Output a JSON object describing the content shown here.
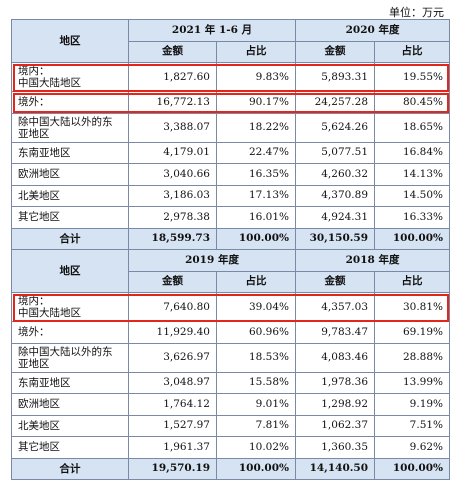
{
  "unit": "单位：万元",
  "table1": {
    "region_header": "地区",
    "periods": [
      "2021 年 1-6 月",
      "2020 年度"
    ],
    "sub_headers": [
      "金额",
      "占比",
      "金额",
      "占比"
    ],
    "rows": [
      {
        "region": "境内：\n中国大陆地区",
        "a1": "1,827.60",
        "p1": "9.83%",
        "a2": "5,893.31",
        "p2": "19.55%"
      },
      {
        "region": "境外：",
        "a1": "16,772.13",
        "p1": "90.17%",
        "a2": "24,257.28",
        "p2": "80.45%"
      },
      {
        "region": "除中国大陆以外的东亚地区",
        "a1": "3,388.07",
        "p1": "18.22%",
        "a2": "5,624.26",
        "p2": "18.65%"
      },
      {
        "region": "东南亚地区",
        "a1": "4,179.01",
        "p1": "22.47%",
        "a2": "5,077.51",
        "p2": "16.84%"
      },
      {
        "region": "欧洲地区",
        "a1": "3,040.66",
        "p1": "16.35%",
        "a2": "4,260.32",
        "p2": "14.13%"
      },
      {
        "region": "北美地区",
        "a1": "3,186.03",
        "p1": "17.13%",
        "a2": "4,370.89",
        "p2": "14.50%"
      },
      {
        "region": "其它地区",
        "a1": "2,978.38",
        "p1": "16.01%",
        "a2": "4,924.31",
        "p2": "16.33%"
      }
    ],
    "total": {
      "region": "合计",
      "a1": "18,599.73",
      "p1": "100.00%",
      "a2": "30,150.59",
      "p2": "100.00%"
    }
  },
  "table2": {
    "region_header": "地区",
    "periods": [
      "2019 年度",
      "2018 年度"
    ],
    "sub_headers": [
      "金额",
      "占比",
      "金额",
      "占比"
    ],
    "rows": [
      {
        "region": "境内：\n中国大陆地区",
        "a1": "7,640.80",
        "p1": "39.04%",
        "a2": "4,357.03",
        "p2": "30.81%"
      },
      {
        "region": "境外：",
        "a1": "11,929.40",
        "p1": "60.96%",
        "a2": "9,783.47",
        "p2": "69.19%"
      },
      {
        "region": "除中国大陆以外的东亚地区",
        "a1": "3,626.97",
        "p1": "18.53%",
        "a2": "4,083.46",
        "p2": "28.88%"
      },
      {
        "region": "东南亚地区",
        "a1": "3,048.97",
        "p1": "15.58%",
        "a2": "1,978.36",
        "p2": "13.99%"
      },
      {
        "region": "欧洲地区",
        "a1": "1,764.12",
        "p1": "9.01%",
        "a2": "1,298.92",
        "p2": "9.19%"
      },
      {
        "region": "北美地区",
        "a1": "1,527.97",
        "p1": "7.81%",
        "a2": "1,062.37",
        "p2": "7.51%"
      },
      {
        "region": "其它地区",
        "a1": "1,961.37",
        "p1": "10.02%",
        "a2": "1,360.35",
        "p2": "9.62%"
      }
    ],
    "total": {
      "region": "合计",
      "a1": "19,570.19",
      "p1": "100.00%",
      "a2": "14,140.50",
      "p2": "100.00%"
    }
  },
  "highlight_color": "#e3261b",
  "header_fill": "#d6e3f2"
}
